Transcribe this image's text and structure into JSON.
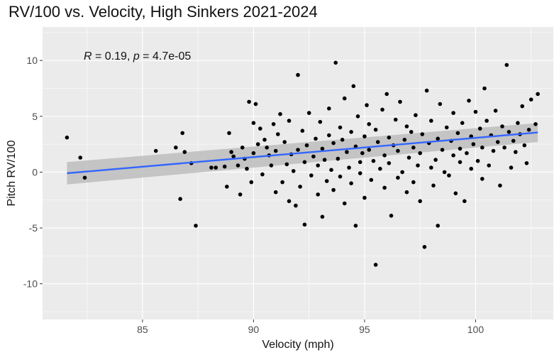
{
  "chart_data": {
    "type": "scatter",
    "title": "RV/100 vs. Velocity, High Sinkers 2021-2024",
    "xlabel": "Velocity (mph)",
    "ylabel": "Pitch RV/100",
    "xlim": [
      80.5,
      103.5
    ],
    "ylim": [
      -13.2,
      13.0
    ],
    "xticks": [
      85,
      90,
      95,
      100
    ],
    "xtick_labels": [
      "85",
      "90",
      "95",
      "100"
    ],
    "yticks": [
      -10,
      -5,
      0,
      5,
      10
    ],
    "ytick_labels": [
      "-10",
      "-5",
      "0",
      "5",
      "10"
    ],
    "grid": true,
    "legend": "none",
    "annotation": {
      "r_symbol": "R",
      "r_text": " = 0.19, ",
      "p_symbol": "p",
      "p_text": " = 4.7e-05"
    },
    "regression": {
      "x": [
        81.6,
        102.8
      ],
      "y": [
        -0.1,
        3.55
      ],
      "ci_lower": [
        -1.1,
        2.7
      ],
      "ci_upper": [
        0.9,
        4.4
      ],
      "color": "#3366ff",
      "band_color": "#bdbdbd"
    },
    "point_color": "#000000",
    "points": [
      [
        81.6,
        3.1
      ],
      [
        82.2,
        1.3
      ],
      [
        82.4,
        -0.5
      ],
      [
        85.6,
        1.9
      ],
      [
        86.5,
        2.2
      ],
      [
        86.7,
        -2.4
      ],
      [
        86.8,
        3.5
      ],
      [
        86.9,
        1.8
      ],
      [
        87.2,
        0.8
      ],
      [
        87.4,
        -4.8
      ],
      [
        88.1,
        0.4
      ],
      [
        88.3,
        0.4
      ],
      [
        88.7,
        0.5
      ],
      [
        88.8,
        -1.3
      ],
      [
        88.9,
        3.5
      ],
      [
        89.0,
        1.8
      ],
      [
        89.1,
        1.4
      ],
      [
        89.3,
        0.6
      ],
      [
        89.4,
        -2.0
      ],
      [
        89.5,
        2.2
      ],
      [
        89.6,
        1.2
      ],
      [
        89.7,
        0.3
      ],
      [
        89.8,
        6.3
      ],
      [
        89.9,
        -0.9
      ],
      [
        90.0,
        4.4
      ],
      [
        90.0,
        1.7
      ],
      [
        90.1,
        6.1
      ],
      [
        90.2,
        2.5
      ],
      [
        90.3,
        3.9
      ],
      [
        90.4,
        -0.2
      ],
      [
        90.5,
        2.9
      ],
      [
        90.6,
        2.2
      ],
      [
        90.7,
        1.5
      ],
      [
        90.8,
        0.6
      ],
      [
        90.9,
        4.3
      ],
      [
        91.0,
        -1.8
      ],
      [
        91.0,
        1.9
      ],
      [
        91.1,
        3.4
      ],
      [
        91.2,
        5.2
      ],
      [
        91.3,
        -0.9
      ],
      [
        91.4,
        2.7
      ],
      [
        91.5,
        0.7
      ],
      [
        91.6,
        -2.6
      ],
      [
        91.6,
        4.6
      ],
      [
        91.7,
        1.6
      ],
      [
        91.8,
        0.1
      ],
      [
        91.9,
        -3.0
      ],
      [
        92.0,
        2.0
      ],
      [
        92.0,
        8.7
      ],
      [
        92.1,
        -1.3
      ],
      [
        92.2,
        3.7
      ],
      [
        92.3,
        -4.7
      ],
      [
        92.3,
        0.9
      ],
      [
        92.4,
        2.4
      ],
      [
        92.5,
        5.3
      ],
      [
        92.6,
        -0.3
      ],
      [
        92.7,
        1.4
      ],
      [
        92.8,
        3.0
      ],
      [
        92.9,
        -2.0
      ],
      [
        92.9,
        0.6
      ],
      [
        93.0,
        4.5
      ],
      [
        93.1,
        -4.0
      ],
      [
        93.1,
        2.1
      ],
      [
        93.2,
        1.1
      ],
      [
        93.3,
        -0.8
      ],
      [
        93.4,
        5.7
      ],
      [
        93.4,
        3.3
      ],
      [
        93.5,
        0.2
      ],
      [
        93.6,
        -1.6
      ],
      [
        93.6,
        2.6
      ],
      [
        93.7,
        9.8
      ],
      [
        93.8,
        1.2
      ],
      [
        93.9,
        -0.4
      ],
      [
        93.9,
        4.0
      ],
      [
        94.0,
        2.9
      ],
      [
        94.1,
        6.6
      ],
      [
        94.1,
        -2.8
      ],
      [
        94.2,
        1.8
      ],
      [
        94.3,
        0.4
      ],
      [
        94.4,
        3.6
      ],
      [
        94.4,
        -1.0
      ],
      [
        94.5,
        7.7
      ],
      [
        94.6,
        2.3
      ],
      [
        94.6,
        -4.8
      ],
      [
        94.7,
        5.0
      ],
      [
        94.8,
        0.9
      ],
      [
        94.8,
        -0.1
      ],
      [
        94.9,
        1.7
      ],
      [
        95.0,
        3.2
      ],
      [
        95.0,
        -2.3
      ],
      [
        95.1,
        6.0
      ],
      [
        95.2,
        2.0
      ],
      [
        95.2,
        4.3
      ],
      [
        95.3,
        -0.7
      ],
      [
        95.4,
        1.0
      ],
      [
        95.5,
        -8.3
      ],
      [
        95.5,
        3.8
      ],
      [
        95.6,
        2.7
      ],
      [
        95.7,
        0.3
      ],
      [
        95.8,
        5.6
      ],
      [
        95.9,
        -1.4
      ],
      [
        95.9,
        1.5
      ],
      [
        96.0,
        7.0
      ],
      [
        96.1,
        3.1
      ],
      [
        96.1,
        0.8
      ],
      [
        96.2,
        -3.9
      ],
      [
        96.3,
        2.4
      ],
      [
        96.4,
        4.7
      ],
      [
        96.5,
        -0.5
      ],
      [
        96.5,
        1.9
      ],
      [
        96.6,
        6.3
      ],
      [
        96.7,
        0.0
      ],
      [
        96.8,
        2.9
      ],
      [
        96.9,
        -1.8
      ],
      [
        96.9,
        4.1
      ],
      [
        97.0,
        1.3
      ],
      [
        97.1,
        3.6
      ],
      [
        97.2,
        -0.9
      ],
      [
        97.2,
        2.2
      ],
      [
        97.3,
        5.1
      ],
      [
        97.4,
        0.6
      ],
      [
        97.5,
        -2.6
      ],
      [
        97.5,
        1.7
      ],
      [
        97.6,
        3.4
      ],
      [
        97.7,
        -6.7
      ],
      [
        97.8,
        7.3
      ],
      [
        97.9,
        2.6
      ],
      [
        98.0,
        0.4
      ],
      [
        98.0,
        4.6
      ],
      [
        98.1,
        -1.2
      ],
      [
        98.2,
        1.1
      ],
      [
        98.3,
        3.0
      ],
      [
        98.3,
        -4.8
      ],
      [
        98.4,
        6.1
      ],
      [
        98.5,
        2.0
      ],
      [
        98.6,
        0.0
      ],
      [
        98.7,
        4.0
      ],
      [
        98.8,
        -0.3
      ],
      [
        98.9,
        2.8
      ],
      [
        99.0,
        1.5
      ],
      [
        99.0,
        5.3
      ],
      [
        99.1,
        -1.9
      ],
      [
        99.2,
        3.5
      ],
      [
        99.3,
        0.9
      ],
      [
        99.3,
        2.1
      ],
      [
        99.4,
        4.4
      ],
      [
        99.5,
        -2.6
      ],
      [
        99.6,
        1.7
      ],
      [
        99.7,
        6.4
      ],
      [
        99.8,
        3.2
      ],
      [
        99.8,
        0.3
      ],
      [
        99.9,
        2.5
      ],
      [
        100.0,
        5.4
      ],
      [
        100.1,
        1.0
      ],
      [
        100.2,
        3.9
      ],
      [
        100.3,
        -0.6
      ],
      [
        100.3,
        2.2
      ],
      [
        100.4,
        7.5
      ],
      [
        100.5,
        4.6
      ],
      [
        100.6,
        0.6
      ],
      [
        100.7,
        3.3
      ],
      [
        100.8,
        1.9
      ],
      [
        100.9,
        5.5
      ],
      [
        101.0,
        2.7
      ],
      [
        101.1,
        -1.2
      ],
      [
        101.2,
        4.1
      ],
      [
        101.3,
        2.2
      ],
      [
        101.4,
        9.6
      ],
      [
        101.5,
        3.6
      ],
      [
        101.6,
        0.4
      ],
      [
        101.7,
        2.8
      ],
      [
        101.8,
        1.8
      ],
      [
        101.9,
        4.4
      ],
      [
        102.0,
        3.4
      ],
      [
        102.1,
        5.9
      ],
      [
        102.2,
        2.4
      ],
      [
        102.3,
        0.8
      ],
      [
        102.4,
        3.8
      ],
      [
        102.5,
        6.5
      ],
      [
        102.7,
        4.3
      ],
      [
        102.8,
        7.0
      ]
    ]
  }
}
